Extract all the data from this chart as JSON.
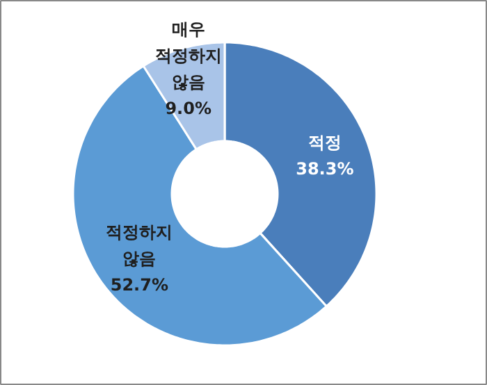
{
  "chart_data": {
    "type": "donut",
    "categories": [
      "적정",
      "적정하지 않음",
      "매우 적정하지 않음"
    ],
    "values": [
      38.3,
      52.7,
      9.0
    ],
    "colors": [
      "#4a7ebb",
      "#5b9bd5",
      "#a9c4e8"
    ],
    "value_labels": [
      "38.3%",
      "52.7%",
      "9.0%"
    ]
  }
}
